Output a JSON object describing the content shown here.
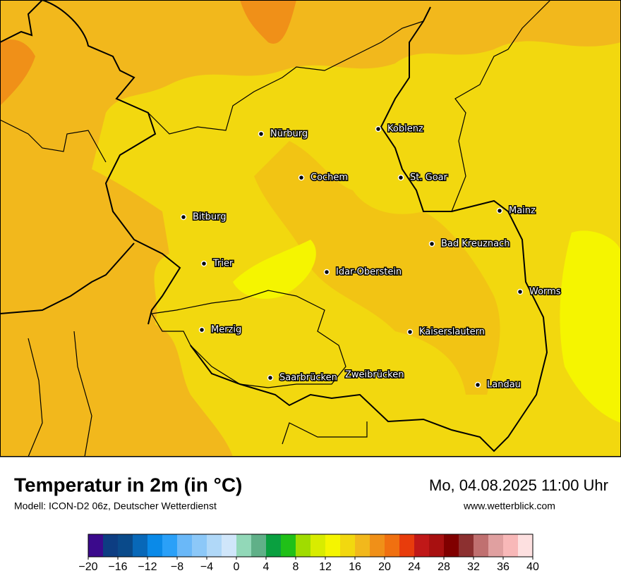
{
  "header": {
    "title": "Temperatur in 2m (in °C)",
    "model": "Modell: ICON-D2 06z, Deutscher Wetterdienst",
    "datetime": "Mo, 04.08.2025 11:00 Uhr",
    "website": "www.wetterblick.com"
  },
  "cities": [
    "Nürburg",
    "Koblenz",
    "Cochem",
    "St. Goar",
    "Bitburg",
    "Mainz",
    "Bad Kreuznach",
    "Trier",
    "Idar-Oberstein",
    "Worms",
    "Merzig",
    "Kaiserslautern",
    "Saarbrücken",
    "Zweibrücken",
    "Landau"
  ],
  "colorbar": {
    "colors": [
      "#3b0a8c",
      "#0d3d82",
      "#0a4a8a",
      "#0868b8",
      "#0a8ae8",
      "#2aa0f8",
      "#6ab8f8",
      "#8cc8f8",
      "#b0d8f8",
      "#d0e6fa",
      "#92d8b8",
      "#60b088",
      "#0aa040",
      "#20c018",
      "#a0dc00",
      "#d8ec00",
      "#f5f500",
      "#f2d80f",
      "#f2b81c",
      "#f09018",
      "#f07010",
      "#e83c0c",
      "#c01818",
      "#a81010",
      "#800000",
      "#8c3030",
      "#c07070",
      "#e0a0a0",
      "#f8b8b8",
      "#fde0e0"
    ],
    "ticks": [
      {
        "value": -20,
        "label": "−20"
      },
      {
        "value": -16,
        "label": "−16"
      },
      {
        "value": -12,
        "label": "−12"
      },
      {
        "value": -8,
        "label": "−8"
      },
      {
        "value": -4,
        "label": "−4"
      },
      0,
      4,
      8,
      12,
      16,
      20,
      24,
      28,
      32,
      36,
      40
    ]
  }
}
